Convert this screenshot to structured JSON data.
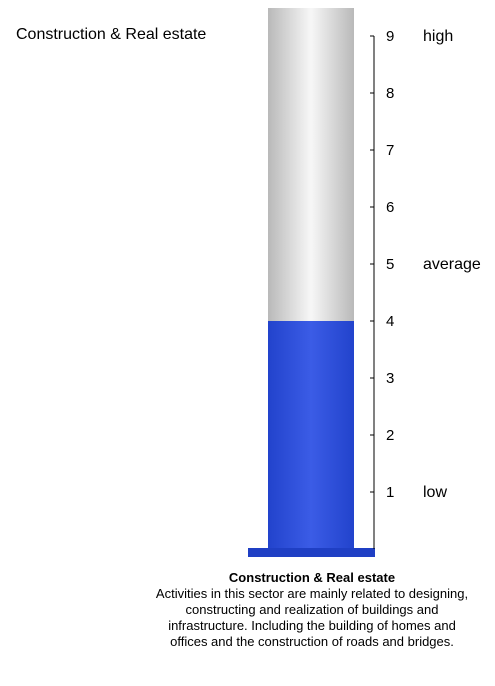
{
  "side_title": "Construction & Real estate",
  "caption": {
    "title": "Construction & Real estate",
    "body": "Activities in this sector are mainly related to designing, constructing and realization of buildings and infrastructure. Including the building of homes and offices and the construction of roads and bridges."
  },
  "chart_data": {
    "type": "bar",
    "categories": [
      "Construction & Real estate"
    ],
    "values": [
      4
    ],
    "ylim": [
      0,
      9
    ],
    "y_ticks": [
      1,
      2,
      3,
      4,
      5,
      6,
      7,
      8,
      9
    ],
    "annotations": [
      {
        "label": "high",
        "y": 9
      },
      {
        "label": "average",
        "y": 5
      },
      {
        "label": "low",
        "y": 1
      }
    ],
    "colors": {
      "fill": "#2e4bd6",
      "base": "#1f3fc4",
      "tube_edge": "#bdbdbd",
      "tube_center": "#f8f8f8"
    },
    "grid": false,
    "legend": "none"
  }
}
